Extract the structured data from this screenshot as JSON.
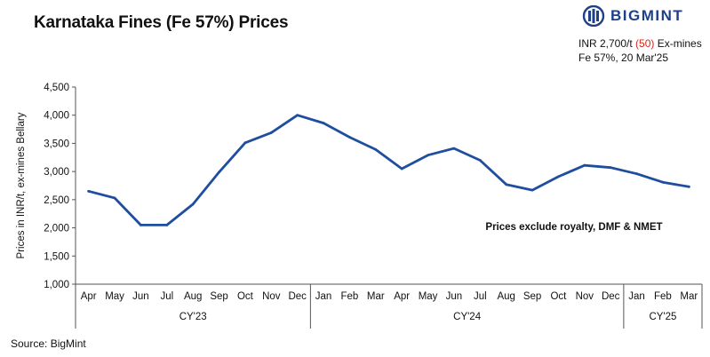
{
  "header": {
    "title": "Karnataka Fines (Fe 57%) Prices",
    "brand": "BIGMINT",
    "price_prefix": "INR 2,700/t ",
    "price_change": "(50)",
    "price_suffix": " Ex-mines",
    "spec_date": "Fe 57%, 20 Mar'25"
  },
  "footer": {
    "source": "Source: BigMint"
  },
  "colors": {
    "line": "#1f4e9e",
    "brand": "#1e3f8a",
    "negative": "#d9261c"
  },
  "chart_data": {
    "type": "line",
    "title": "Karnataka Fines (Fe 57%) Prices",
    "ylabel": "Prices in INR/t, ex-mines Bellary",
    "xlabel": "",
    "ylim": [
      1000,
      4500
    ],
    "yticks": [
      1000,
      1500,
      2000,
      2500,
      3000,
      3500,
      4000,
      4500
    ],
    "ytick_labels": [
      "1,000",
      "1,500",
      "2,000",
      "2,500",
      "3,000",
      "3,500",
      "4,000",
      "4,500"
    ],
    "categories": [
      "Apr",
      "May",
      "Jun",
      "Jul",
      "Aug",
      "Sep",
      "Oct",
      "Nov",
      "Dec",
      "Jan",
      "Feb",
      "Mar",
      "Apr",
      "May",
      "Jun",
      "Jul",
      "Aug",
      "Sep",
      "Oct",
      "Nov",
      "Dec",
      "Jan",
      "Feb",
      "Mar"
    ],
    "groups": [
      {
        "label": "CY'23",
        "count": 9
      },
      {
        "label": "CY'24",
        "count": 12
      },
      {
        "label": "CY'25",
        "count": 3
      }
    ],
    "series": [
      {
        "values": [
          2650,
          2530,
          2050,
          2050,
          2420,
          2990,
          3510,
          3690,
          4000,
          3860,
          3610,
          3390,
          3050,
          3290,
          3410,
          3200,
          2770,
          2670,
          2910,
          3110,
          3070,
          2960,
          2810,
          2730
        ]
      }
    ],
    "annotation": "Prices exclude royalty, DMF & NMET",
    "grid": false,
    "legend": "none"
  }
}
